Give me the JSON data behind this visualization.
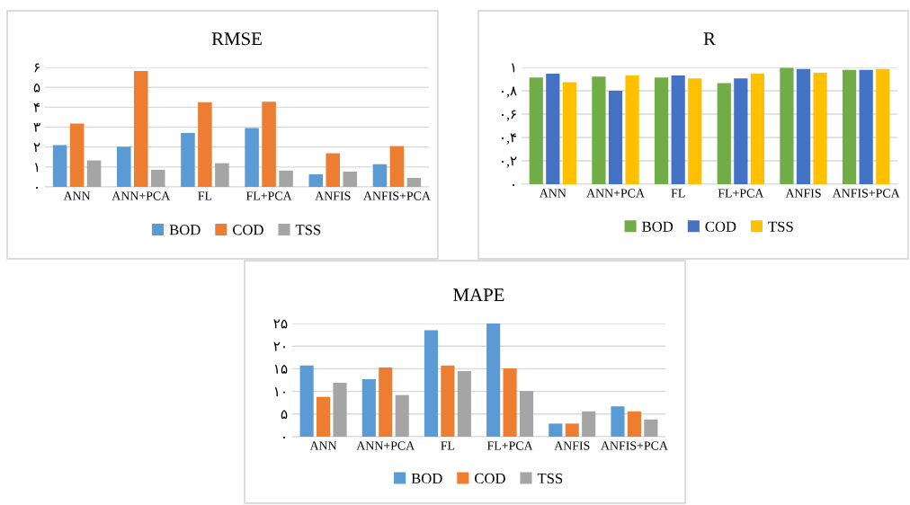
{
  "chart_data": [
    {
      "type": "bar",
      "title": "RMSE",
      "categories": [
        "ANN",
        "ANN+PCA",
        "FL",
        "FL+PCA",
        "ANFIS",
        "ANFIS+PCA"
      ],
      "series": [
        {
          "name": "BOD",
          "color": "#5b9bd5",
          "values": [
            2.1,
            2.02,
            2.71,
            2.95,
            0.63,
            1.14
          ]
        },
        {
          "name": "COD",
          "color": "#ed7d31",
          "values": [
            3.18,
            5.82,
            4.25,
            4.28,
            1.69,
            2.05
          ]
        },
        {
          "name": "TSS",
          "color": "#a5a5a5",
          "values": [
            1.33,
            0.86,
            1.19,
            0.82,
            0.77,
            0.45
          ]
        }
      ],
      "ylim": [
        0,
        6
      ],
      "yticks": [
        {
          "value": 0,
          "label": "۰"
        },
        {
          "value": 1,
          "label": "۱"
        },
        {
          "value": 2,
          "label": "۲"
        },
        {
          "value": 3,
          "label": "۳"
        },
        {
          "value": 4,
          "label": "۴"
        },
        {
          "value": 5,
          "label": "۵"
        },
        {
          "value": 6,
          "label": "۶"
        }
      ],
      "grid": "y",
      "legend": "bottom"
    },
    {
      "type": "bar",
      "title": "R",
      "categories": [
        "ANN",
        "ANN+PCA",
        "FL",
        "FL+PCA",
        "ANFIS",
        "ANFIS+PCA"
      ],
      "series": [
        {
          "name": "BOD",
          "color": "#70ad47",
          "values": [
            0.914,
            0.922,
            0.914,
            0.865,
            0.997,
            0.978
          ]
        },
        {
          "name": "COD",
          "color": "#4472c4",
          "values": [
            0.946,
            0.8,
            0.93,
            0.906,
            0.987,
            0.978
          ]
        },
        {
          "name": "TSS",
          "color": "#ffc000",
          "values": [
            0.873,
            0.93,
            0.906,
            0.946,
            0.954,
            0.987
          ]
        }
      ],
      "ylim": [
        0,
        1
      ],
      "yticks": [
        {
          "value": 0,
          "label": "۰"
        },
        {
          "value": 0.2,
          "label": "۰,۲"
        },
        {
          "value": 0.4,
          "label": "۰,۴"
        },
        {
          "value": 0.6,
          "label": "۰,۶"
        },
        {
          "value": 0.8,
          "label": "۰,۸"
        },
        {
          "value": 1,
          "label": "۱"
        }
      ],
      "grid": "y",
      "legend": "bottom"
    },
    {
      "type": "bar",
      "title": "MAPE",
      "categories": [
        "ANN",
        "ANN+PCA",
        "FL",
        "FL+PCA",
        "ANFIS",
        "ANFIS+PCA"
      ],
      "series": [
        {
          "name": "BOD",
          "color": "#5b9bd5",
          "values": [
            15.7,
            12.7,
            23.5,
            25.0,
            2.9,
            6.7
          ]
        },
        {
          "name": "COD",
          "color": "#ed7d31",
          "values": [
            8.8,
            15.3,
            15.7,
            15.1,
            2.9,
            5.6
          ]
        },
        {
          "name": "TSS",
          "color": "#a5a5a5",
          "values": [
            11.9,
            9.2,
            14.5,
            10.1,
            5.6,
            3.8
          ]
        }
      ],
      "ylim": [
        0,
        25
      ],
      "yticks": [
        {
          "value": 0,
          "label": "۰"
        },
        {
          "value": 5,
          "label": "۵"
        },
        {
          "value": 10,
          "label": "۱۰"
        },
        {
          "value": 15,
          "label": "۱۵"
        },
        {
          "value": 20,
          "label": "۲۰"
        },
        {
          "value": 25,
          "label": "۲۵"
        }
      ],
      "grid": "y",
      "legend": "bottom"
    }
  ]
}
